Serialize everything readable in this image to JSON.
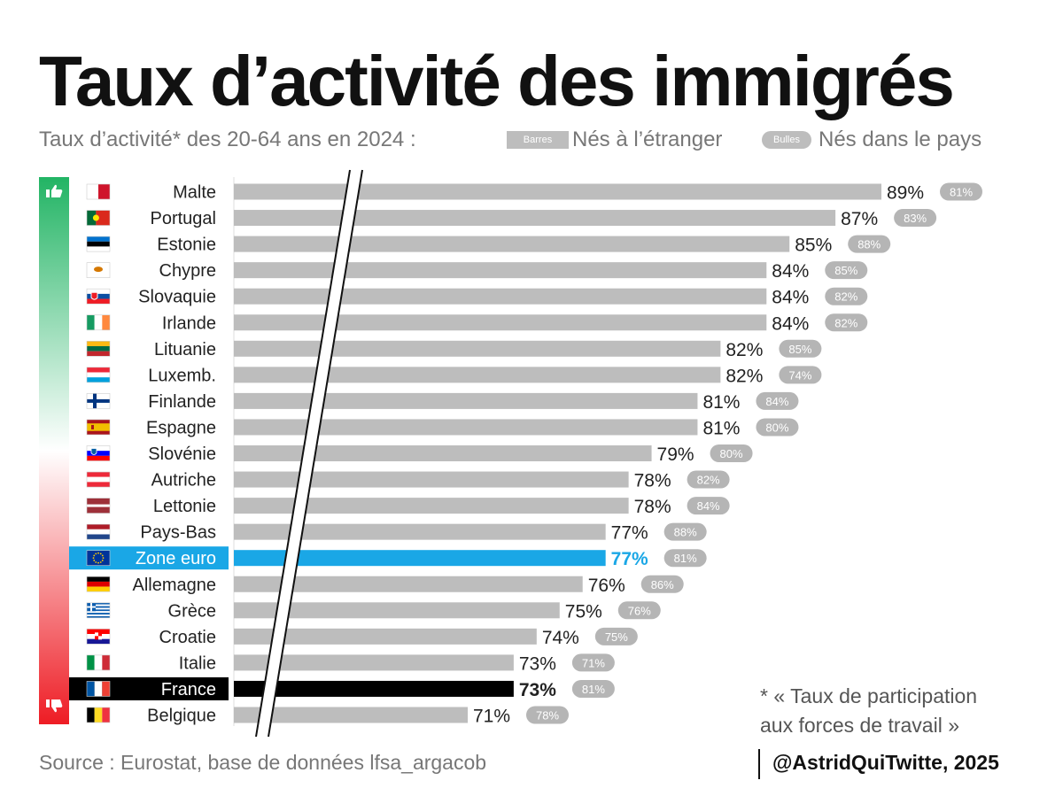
{
  "title": "Taux d’activité des immigrés",
  "subtitle": "Taux d’activité* des 20-64 ans en 2024 :",
  "legend": {
    "bar_tag": "Barres",
    "bar_label": "Nés à l’étranger",
    "bubble_tag": "Bulles",
    "bubble_label": "Nés dans le pays"
  },
  "footnote": {
    "line1": "* « Taux de participation",
    "line2": "aux forces de travail »"
  },
  "source": "Source : Eurostat, base de données lfsa_argacob",
  "credit": "@AstridQuiTwitte, 2025",
  "icons": {
    "top": "thumbs-up-icon",
    "bottom": "thumbs-down-icon"
  },
  "colors": {
    "bar": "#bdbdbd",
    "bubble": "#b5b5b5",
    "zone_euro": "#1aa7e6",
    "france": "#000000",
    "gradient_top": "#22b464",
    "gradient_bottom": "#ee1c24"
  },
  "chart_data": {
    "type": "bar",
    "orientation": "horizontal",
    "axis_break": true,
    "series": [
      {
        "name": "Nés à l’étranger",
        "marker": "bar"
      },
      {
        "name": "Nés dans le pays",
        "marker": "bubble"
      }
    ],
    "rows": [
      {
        "country": "Malte",
        "flag": "mt",
        "foreign": 89,
        "native": 81,
        "foreign_label": "89%",
        "native_label": "81%"
      },
      {
        "country": "Portugal",
        "flag": "pt",
        "foreign": 87,
        "native": 83,
        "foreign_label": "87%",
        "native_label": "83%"
      },
      {
        "country": "Estonie",
        "flag": "ee",
        "foreign": 85,
        "native": 88,
        "foreign_label": "85%",
        "native_label": "88%"
      },
      {
        "country": "Chypre",
        "flag": "cy",
        "foreign": 84,
        "native": 85,
        "foreign_label": "84%",
        "native_label": "85%"
      },
      {
        "country": "Slovaquie",
        "flag": "sk",
        "foreign": 84,
        "native": 82,
        "foreign_label": "84%",
        "native_label": "82%"
      },
      {
        "country": "Irlande",
        "flag": "ie",
        "foreign": 84,
        "native": 82,
        "foreign_label": "84%",
        "native_label": "82%"
      },
      {
        "country": "Lituanie",
        "flag": "lt",
        "foreign": 82,
        "native": 85,
        "foreign_label": "82%",
        "native_label": "85%"
      },
      {
        "country": "Luxemb.",
        "flag": "lu",
        "foreign": 82,
        "native": 74,
        "foreign_label": "82%",
        "native_label": "74%"
      },
      {
        "country": "Finlande",
        "flag": "fi",
        "foreign": 81,
        "native": 84,
        "foreign_label": "81%",
        "native_label": "84%"
      },
      {
        "country": "Espagne",
        "flag": "es",
        "foreign": 81,
        "native": 80,
        "foreign_label": "81%",
        "native_label": "80%"
      },
      {
        "country": "Slovénie",
        "flag": "si",
        "foreign": 79,
        "native": 80,
        "foreign_label": "79%",
        "native_label": "80%"
      },
      {
        "country": "Autriche",
        "flag": "at",
        "foreign": 78,
        "native": 82,
        "foreign_label": "78%",
        "native_label": "82%"
      },
      {
        "country": "Lettonie",
        "flag": "lv",
        "foreign": 78,
        "native": 84,
        "foreign_label": "78%",
        "native_label": "84%"
      },
      {
        "country": "Pays-Bas",
        "flag": "nl",
        "foreign": 77,
        "native": 88,
        "foreign_label": "77%",
        "native_label": "88%"
      },
      {
        "country": "Zone euro",
        "flag": "eu",
        "foreign": 77,
        "native": 81,
        "foreign_label": "77%",
        "native_label": "81%",
        "highlight": "zone_euro"
      },
      {
        "country": "Allemagne",
        "flag": "de",
        "foreign": 76,
        "native": 86,
        "foreign_label": "76%",
        "native_label": "86%"
      },
      {
        "country": "Grèce",
        "flag": "gr",
        "foreign": 75,
        "native": 76,
        "foreign_label": "75%",
        "native_label": "76%"
      },
      {
        "country": "Croatie",
        "flag": "hr",
        "foreign": 74,
        "native": 75,
        "foreign_label": "74%",
        "native_label": "75%"
      },
      {
        "country": "Italie",
        "flag": "it",
        "foreign": 73,
        "native": 71,
        "foreign_label": "73%",
        "native_label": "71%"
      },
      {
        "country": "France",
        "flag": "fr",
        "foreign": 73,
        "native": 81,
        "foreign_label": "73%",
        "native_label": "81%",
        "highlight": "france"
      },
      {
        "country": "Belgique",
        "flag": "be",
        "foreign": 71,
        "native": 78,
        "foreign_label": "71%",
        "native_label": "78%"
      }
    ]
  }
}
